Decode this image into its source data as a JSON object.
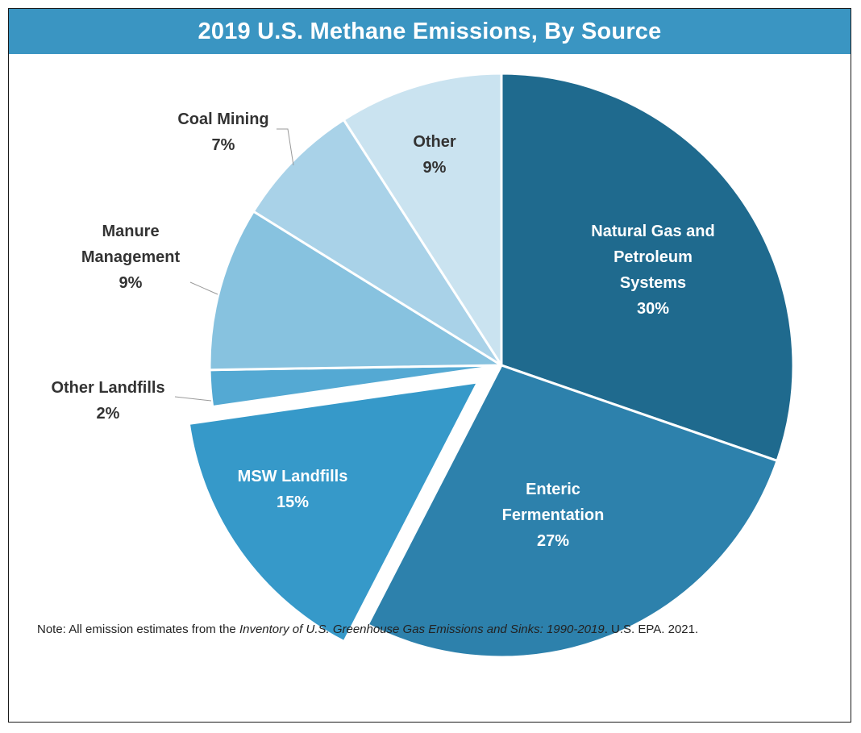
{
  "title": "2019 U.S. Methane Emissions, By Source",
  "note": {
    "prefix": "Note: All emission estimates from the ",
    "italic": "Inventory of U.S. Greenhouse Gas Emissions and Sinks: 1990-2019",
    "suffix": ". U.S. EPA. 2021."
  },
  "chart_data": {
    "type": "pie",
    "title": "2019 U.S. Methane Emissions, By Source",
    "unit": "%",
    "slices": [
      {
        "label": "Natural Gas and Petroleum Systems",
        "label_lines": [
          "Natural Gas and",
          "Petroleum",
          "Systems"
        ],
        "value": 30,
        "value_label": "30%",
        "color": "#1f6a8e",
        "exploded": false,
        "label_inside": true
      },
      {
        "label": "Enteric Fermentation",
        "label_lines": [
          "Enteric",
          "Fermentation"
        ],
        "value": 27,
        "value_label": "27%",
        "color": "#2d81ac",
        "exploded": false,
        "label_inside": true
      },
      {
        "label": "MSW Landfills",
        "label_lines": [
          "MSW Landfills"
        ],
        "value": 15,
        "value_label": "15%",
        "color": "#3699c9",
        "exploded": true,
        "label_inside": true
      },
      {
        "label": "Other Landfills",
        "label_lines": [
          "Other Landfills"
        ],
        "value": 2,
        "value_label": "2%",
        "color": "#54a9d3",
        "exploded": false,
        "label_inside": false
      },
      {
        "label": "Manure Management",
        "label_lines": [
          "Manure",
          "Management"
        ],
        "value": 9,
        "value_label": "9%",
        "color": "#87c2df",
        "exploded": false,
        "label_inside": false
      },
      {
        "label": "Coal Mining",
        "label_lines": [
          "Coal Mining"
        ],
        "value": 7,
        "value_label": "7%",
        "color": "#a9d2e8",
        "exploded": false,
        "label_inside": false
      },
      {
        "label": "Other",
        "label_lines": [
          "Other"
        ],
        "value": 9,
        "value_label": "9%",
        "color": "#cae3f0",
        "exploded": false,
        "label_inside": true
      }
    ]
  }
}
